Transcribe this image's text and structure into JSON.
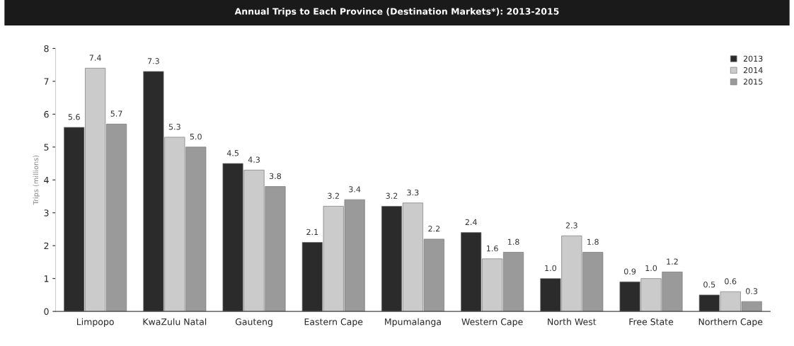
{
  "chart_data": {
    "type": "bar",
    "title": "Annual Trips to Each Province (Destination Markets*): 2013-2015",
    "ylabel": "Trips (millions)",
    "categories": [
      "Limpopo",
      "KwaZulu Natal",
      "Gauteng",
      "Eastern Cape",
      "Mpumalanga",
      "Western Cape",
      "North West",
      "Free State",
      "Northern Cape"
    ],
    "series": [
      {
        "name": "2013",
        "color": "#2b2b2b",
        "values": [
          5.6,
          7.3,
          4.5,
          2.1,
          3.2,
          2.4,
          1.0,
          0.9,
          0.5
        ],
        "value_labels": [
          "5.6",
          "7.3",
          "4.5",
          "2.1",
          "3.2",
          "2.4",
          "1.0",
          "0.9",
          "0.5"
        ]
      },
      {
        "name": "2014",
        "color": "#cbcbcb",
        "values": [
          7.4,
          5.3,
          4.3,
          3.2,
          3.3,
          1.6,
          2.3,
          1.0,
          0.6
        ],
        "value_labels": [
          "7.4",
          "5.3",
          "4.3",
          "3.2",
          "3.3",
          "1.6",
          "2.3",
          "1.0",
          "0.6"
        ]
      },
      {
        "name": "2015",
        "color": "#9a9a9a",
        "values": [
          5.7,
          5.0,
          3.8,
          3.4,
          2.2,
          1.8,
          1.8,
          1.2,
          0.3
        ],
        "value_labels": [
          "5.7",
          "5.0",
          "3.8",
          "3.4",
          "2.2",
          "1.8",
          "1.8",
          "1.2",
          "0.3"
        ]
      }
    ],
    "ylim": [
      0,
      8
    ],
    "yticks": [
      0,
      1,
      2,
      3,
      4,
      5,
      6,
      7,
      8
    ],
    "grid": false,
    "legend": "top right"
  }
}
